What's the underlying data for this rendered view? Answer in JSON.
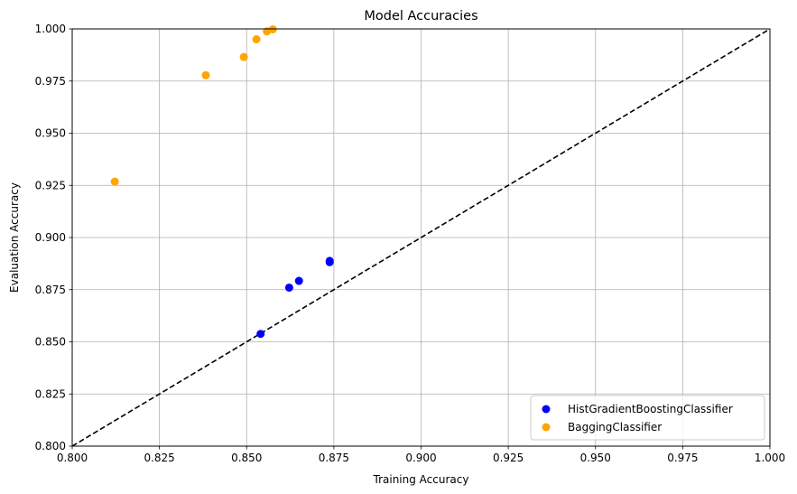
{
  "chart_data": {
    "type": "scatter",
    "title": "Model Accuracies",
    "xlabel": "Training Accuracy",
    "ylabel": "Evaluation Accuracy",
    "xlim": [
      0.8,
      1.0
    ],
    "ylim": [
      0.8,
      1.0
    ],
    "xticks": [
      0.8,
      0.825,
      0.85,
      0.875,
      0.9,
      0.925,
      0.95,
      0.975,
      1.0
    ],
    "yticks": [
      0.8,
      0.825,
      0.85,
      0.875,
      0.9,
      0.925,
      0.95,
      0.975,
      1.0
    ],
    "xtick_labels": [
      "0.800",
      "0.825",
      "0.850",
      "0.875",
      "0.900",
      "0.925",
      "0.950",
      "0.975",
      "1.000"
    ],
    "ytick_labels": [
      "0.800",
      "0.825",
      "0.850",
      "0.875",
      "0.900",
      "0.925",
      "0.950",
      "0.975",
      "1.000"
    ],
    "grid": true,
    "legend_position": "bottom-right",
    "reference_line": {
      "style": "dashed",
      "color": "#000000",
      "from": [
        0.8,
        0.8
      ],
      "to": [
        1.0,
        1.0
      ]
    },
    "series": [
      {
        "name": "HistGradientBoostingClassifier",
        "color": "#0000ff",
        "x": [
          0.854,
          0.8622,
          0.865,
          0.8738,
          0.8738
        ],
        "y": [
          0.8538,
          0.876,
          0.8792,
          0.8882,
          0.8888
        ]
      },
      {
        "name": "BaggingClassifier",
        "color": "#ffa500",
        "x": [
          0.8122,
          0.8383,
          0.8492,
          0.8528,
          0.8558,
          0.8575
        ],
        "y": [
          0.9268,
          0.9778,
          0.9865,
          0.995,
          0.9988,
          0.9998
        ]
      }
    ]
  }
}
